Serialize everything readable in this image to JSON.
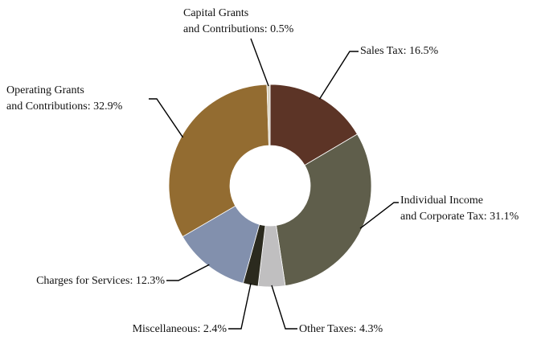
{
  "chart_data": {
    "type": "donut",
    "values": [
      16.5,
      31.1,
      4.3,
      2.4,
      12.3,
      32.9,
      0.5
    ],
    "value_labels": [
      [
        "Sales Tax: 16.5%"
      ],
      [
        "Individual Income",
        "and Corporate Tax: 31.1%"
      ],
      [
        "Other Taxes: 4.3%"
      ],
      [
        "Miscellaneous: 2.4%"
      ],
      [
        "Charges for Services: 12.3%"
      ],
      [
        "Operating Grants",
        "and Contributions: 32.9%"
      ],
      [
        "Capital Grants",
        "and Contributions: 0.5%"
      ]
    ],
    "colors": [
      "#5c3426",
      "#5f5e4b",
      "#c0bfc0",
      "#2b2a1e",
      "#8290ad",
      "#936c31",
      "#d8d2c0"
    ]
  }
}
